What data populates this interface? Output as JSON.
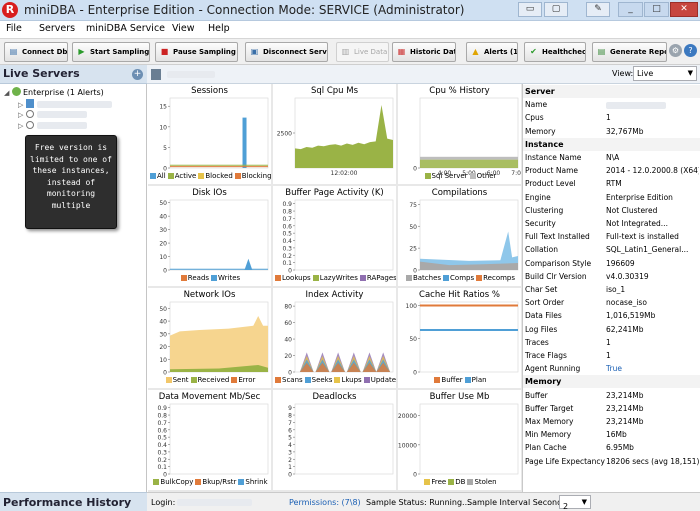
{
  "window": {
    "title": "miniDBA - Enterprise Edition - Connection Mode: SERVICE (Administrator)",
    "app_icon": "R"
  },
  "menu": [
    "File",
    "Servers",
    "miniDBA Service",
    "View",
    "Help"
  ],
  "toolbar": {
    "connect": "Connect Db",
    "start": "Start Sampling All",
    "pause": "Pause Sampling All",
    "disconnect": "Disconnect Service",
    "live": "Live Data",
    "historic": "Historic Data",
    "alerts": "Alerts (1)",
    "health": "Healthcheck",
    "reports": "Generate Reports"
  },
  "left": {
    "header": "Live Servers",
    "root": "Enterprise (1 Alerts)",
    "tooltip": "Free version is limited to one of these instances, instead of monitoring multiple",
    "perf_header": "Performance History"
  },
  "view": {
    "label": "View:",
    "value": "Live"
  },
  "charts": [
    {
      "title": "Sessions",
      "legend": [
        {
          "n": "All",
          "c": "#4f9fd6"
        },
        {
          "n": "Active",
          "c": "#9ab346"
        },
        {
          "n": "Blocked",
          "c": "#e6c34a"
        },
        {
          "n": "Blocking",
          "c": "#e07a3a"
        }
      ],
      "yticks": [
        0,
        5,
        10,
        15
      ],
      "ymax": 17
    },
    {
      "title": "Sql Cpu Ms",
      "legend": [],
      "yticks": [
        2500
      ],
      "ymax": 5000,
      "xlabel": "12:02:00"
    },
    {
      "title": "Cpu % History",
      "legend": [
        {
          "n": "Sql Server",
          "c": "#9ab346"
        },
        {
          "n": "Other",
          "c": "#bdbdbd"
        }
      ],
      "yticks": [
        0
      ],
      "ymax": 100,
      "xticks": [
        "4:00",
        "5:00",
        "6:00",
        "7:00"
      ]
    },
    {
      "title": "Disk IOs",
      "legend": [
        {
          "n": "Reads",
          "c": "#e07a3a"
        },
        {
          "n": "Writes",
          "c": "#4f9fd6"
        }
      ],
      "yticks": [
        0,
        10,
        20,
        30,
        40,
        50
      ],
      "ymax": 52
    },
    {
      "title": "Buffer Page Activity (K)",
      "legend": [
        {
          "n": "Lookups",
          "c": "#e07a3a"
        },
        {
          "n": "LazyWrites",
          "c": "#9ab346"
        },
        {
          "n": "RAPages",
          "c": "#8f6fb0"
        }
      ],
      "yticks": [
        0,
        0.1,
        0.2,
        0.3,
        0.4,
        0.5,
        0.6,
        0.7,
        0.8,
        0.9
      ],
      "ymax": 0.95
    },
    {
      "title": "Compilations",
      "legend": [
        {
          "n": "Batches",
          "c": "#a9a9a9"
        },
        {
          "n": "Comps",
          "c": "#4f9fd6"
        },
        {
          "n": "Recomps",
          "c": "#e07a3a"
        }
      ],
      "yticks": [
        0,
        25,
        50,
        75
      ],
      "ymax": 80
    },
    {
      "title": "Network IOs",
      "legend": [
        {
          "n": "Sent",
          "c": "#f2c76a"
        },
        {
          "n": "Received",
          "c": "#9ab346"
        },
        {
          "n": "Error",
          "c": "#e07a3a"
        }
      ],
      "yticks": [
        0,
        10,
        20,
        30,
        40,
        50
      ],
      "ymax": 55
    },
    {
      "title": "Index Activity",
      "legend": [
        {
          "n": "Scans",
          "c": "#e07a3a"
        },
        {
          "n": "Seeks",
          "c": "#4f9fd6"
        },
        {
          "n": "Lkups",
          "c": "#e6c34a"
        },
        {
          "n": "Updates",
          "c": "#8f6fb0"
        }
      ],
      "yticks": [
        0,
        20,
        40,
        60,
        80
      ],
      "ymax": 85
    },
    {
      "title": "Cache Hit Ratios %",
      "legend": [
        {
          "n": "Buffer",
          "c": "#e07a3a"
        },
        {
          "n": "Plan",
          "c": "#4f9fd6"
        }
      ],
      "yticks": [
        0,
        50,
        100
      ],
      "ymax": 105
    },
    {
      "title": "Data Movement Mb/Sec",
      "legend": [
        {
          "n": "BulkCopy",
          "c": "#9ab346"
        },
        {
          "n": "Bkup/Rstr",
          "c": "#e07a3a"
        },
        {
          "n": "Shrink",
          "c": "#4f9fd6"
        }
      ],
      "yticks": [
        0,
        0.1,
        0.2,
        0.3,
        0.4,
        0.5,
        0.6,
        0.7,
        0.8,
        0.9
      ],
      "ymax": 0.95
    },
    {
      "title": "Deadlocks",
      "legend": [],
      "yticks": [
        0,
        1,
        2,
        3,
        4,
        5,
        6,
        7,
        8,
        9
      ],
      "ymax": 9.5
    },
    {
      "title": "Buffer Use Mb",
      "legend": [
        {
          "n": "Free",
          "c": "#e6c34a"
        },
        {
          "n": "DB",
          "c": "#9ab346"
        },
        {
          "n": "Stolen",
          "c": "#a9a9a9"
        }
      ],
      "yticks": [
        0,
        10000,
        20000
      ],
      "ymax": 24000
    }
  ],
  "properties": [
    {
      "s": "Server"
    },
    {
      "k": "Name",
      "v": ""
    },
    {
      "k": "Cpus",
      "v": "1"
    },
    {
      "k": "Memory",
      "v": "32,767Mb"
    },
    {
      "s": "Instance"
    },
    {
      "k": "Instance Name",
      "v": "N\\A"
    },
    {
      "k": "Product Name",
      "v": "2014 - 12.0.2000.8 (X64)"
    },
    {
      "k": "Product Level",
      "v": "RTM"
    },
    {
      "k": "Engine",
      "v": "Enterprise Edition"
    },
    {
      "k": "Clustering",
      "v": "Not Clustered"
    },
    {
      "k": "Security",
      "v": "Not Integrated..."
    },
    {
      "k": "Full Text Installed",
      "v": "Full-text is installed"
    },
    {
      "k": "Collation",
      "v": "SQL_Latin1_General..."
    },
    {
      "k": "Comparison Style",
      "v": "196609"
    },
    {
      "k": "Build Clr Version",
      "v": "v4.0.30319"
    },
    {
      "k": "Char Set",
      "v": "iso_1"
    },
    {
      "k": "Sort Order",
      "v": "nocase_iso"
    },
    {
      "k": "Data Files",
      "v": "1,016,519Mb"
    },
    {
      "k": "Log Files",
      "v": "62,241Mb"
    },
    {
      "k": "Traces",
      "v": "1"
    },
    {
      "k": "Trace Flags",
      "v": "1"
    },
    {
      "k": "Agent Running",
      "v": "True"
    },
    {
      "s": "Memory"
    },
    {
      "k": "Buffer",
      "v": "23,214Mb"
    },
    {
      "k": "Buffer Target",
      "v": "23,214Mb"
    },
    {
      "k": "Max Memory",
      "v": "23,214Mb"
    },
    {
      "k": "Min Memory",
      "v": "16Mb"
    },
    {
      "k": "Plan Cache",
      "v": "6.95Mb"
    },
    {
      "k": "Page Life Expectancy",
      "v": "18206 secs (avg 18,151)"
    }
  ],
  "status": {
    "login": "Login:",
    "permissions": "Permissions: (7\\8)",
    "sample_status": "Sample Status: Running...",
    "interval_label": "Sample Interval Seconds:",
    "interval_value": "2"
  }
}
